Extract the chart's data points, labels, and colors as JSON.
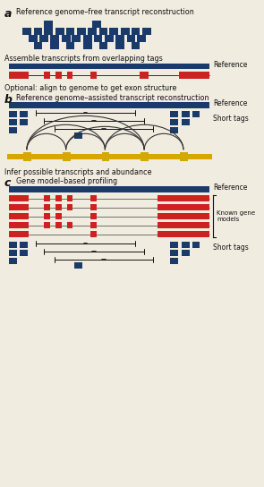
{
  "bg_color": "#f0ece0",
  "blue": "#1a3a6b",
  "red": "#cc2222",
  "yellow": "#d4a800",
  "dark": "#111111",
  "fig_width": 2.95,
  "fig_height": 5.44,
  "label_a": "a",
  "label_b": "b",
  "label_c": "c",
  "title_a": "Reference genome–free transcript reconstruction",
  "title_b": "Reference genome–assisted transcript reconstruction",
  "title_c": "Gene model–based profiling",
  "text_a1": "Assemble transcripts from overlapping tags",
  "text_a2": "Optional: align to genome to get exon structure",
  "text_b1": "Infer possible transcripts and abundance",
  "ref_label": "Reference",
  "short_tags_label": "Short tags",
  "known_gene_label": "Known gene\nmodels"
}
